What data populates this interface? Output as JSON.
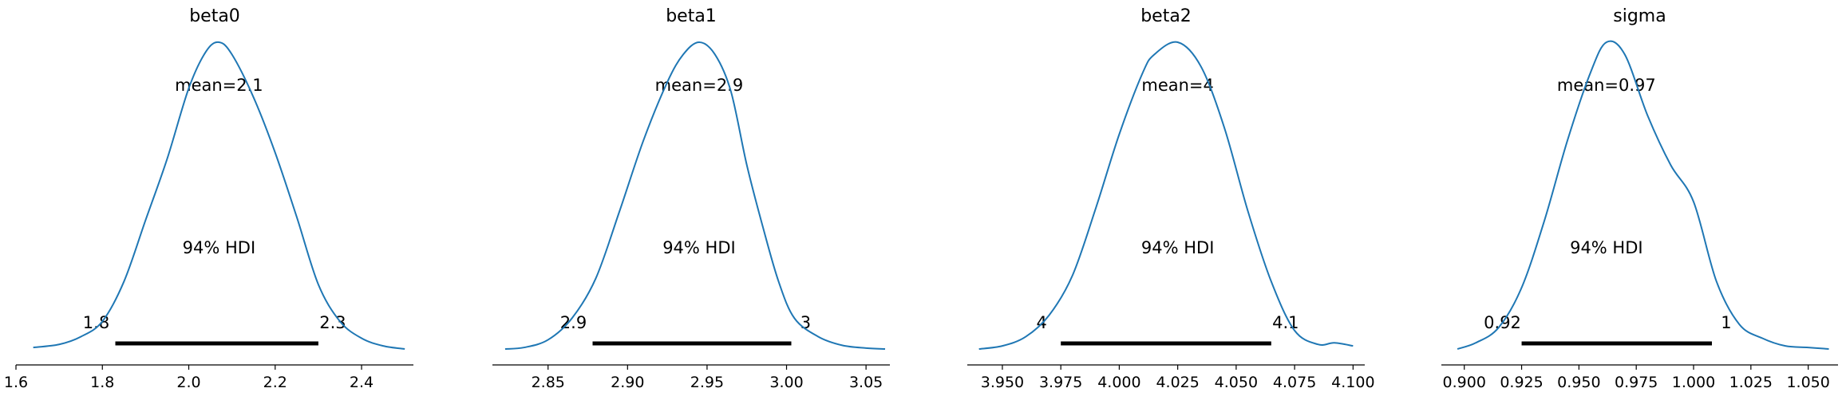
{
  "chart_data": [
    {
      "type": "line",
      "title": "beta0",
      "mean_label": "mean=2.1",
      "hdi_label": "94% HDI",
      "hdi": [
        1.83,
        2.3
      ],
      "hdi_lower_label": "1.8",
      "hdi_upper_label": "2.3",
      "xlim": [
        1.6,
        2.52
      ],
      "xticks": [
        1.6,
        1.8,
        2.0,
        2.2,
        2.4
      ],
      "xtick_labels": [
        "1.6",
        "1.8",
        "2.0",
        "2.2",
        "2.4"
      ],
      "density_x": [
        1.64,
        1.7,
        1.75,
        1.8,
        1.85,
        1.9,
        1.95,
        2.0,
        2.04,
        2.07,
        2.1,
        2.15,
        2.2,
        2.25,
        2.3,
        2.35,
        2.4,
        2.45,
        2.5
      ],
      "density_rel": [
        0.005,
        0.015,
        0.04,
        0.09,
        0.22,
        0.42,
        0.62,
        0.85,
        0.97,
        1.0,
        0.96,
        0.82,
        0.64,
        0.43,
        0.21,
        0.09,
        0.035,
        0.01,
        0.0
      ]
    },
    {
      "type": "line",
      "title": "beta1",
      "mean_label": "mean=2.9",
      "hdi_label": "94% HDI",
      "hdi": [
        2.878,
        3.003
      ],
      "hdi_lower_label": "2.9",
      "hdi_upper_label": "3",
      "xlim": [
        2.815,
        3.065
      ],
      "xticks": [
        2.85,
        2.9,
        2.95,
        3.0,
        3.05
      ],
      "xtick_labels": [
        "2.85",
        "2.90",
        "2.95",
        "3.00",
        "3.05"
      ],
      "density_x": [
        2.823,
        2.835,
        2.85,
        2.865,
        2.88,
        2.895,
        2.91,
        2.925,
        2.935,
        2.945,
        2.955,
        2.965,
        2.975,
        2.985,
        2.995,
        3.005,
        3.02,
        3.035,
        3.05,
        3.062
      ],
      "density_rel": [
        0.0,
        0.005,
        0.03,
        0.1,
        0.23,
        0.45,
        0.68,
        0.87,
        0.96,
        1.0,
        0.96,
        0.84,
        0.6,
        0.4,
        0.22,
        0.1,
        0.04,
        0.012,
        0.003,
        0.0
      ]
    },
    {
      "type": "line",
      "title": "beta2",
      "mean_label": "mean=4",
      "hdi_label": "94% HDI",
      "hdi": [
        3.975,
        4.065
      ],
      "hdi_lower_label": "4",
      "hdi_upper_label": "4.1",
      "xlim": [
        3.935,
        4.105
      ],
      "xticks": [
        3.95,
        3.975,
        4.0,
        4.025,
        4.05,
        4.075,
        4.1
      ],
      "xtick_labels": [
        "3.950",
        "3.975",
        "4.000",
        "4.025",
        "4.050",
        "4.075",
        "4.100"
      ],
      "density_x": [
        3.94,
        3.95,
        3.96,
        3.97,
        3.98,
        3.99,
        4.0,
        4.01,
        4.015,
        4.025,
        4.035,
        4.045,
        4.055,
        4.065,
        4.075,
        4.085,
        4.092,
        4.1
      ],
      "density_rel": [
        0.0,
        0.01,
        0.04,
        0.11,
        0.24,
        0.46,
        0.7,
        0.9,
        0.96,
        1.0,
        0.92,
        0.72,
        0.45,
        0.22,
        0.06,
        0.015,
        0.02,
        0.01
      ]
    },
    {
      "type": "line",
      "title": "sigma",
      "mean_label": "mean=0.97",
      "hdi_label": "94% HDI",
      "hdi": [
        0.925,
        1.008
      ],
      "hdi_lower_label": "0.92",
      "hdi_upper_label": "1",
      "xlim": [
        0.89,
        1.063
      ],
      "xticks": [
        0.9,
        0.925,
        0.95,
        0.975,
        1.0,
        1.025,
        1.05
      ],
      "xtick_labels": [
        "0.900",
        "0.925",
        "0.950",
        "0.975",
        "1.000",
        "1.025",
        "1.050"
      ],
      "density_x": [
        0.897,
        0.905,
        0.915,
        0.925,
        0.935,
        0.945,
        0.955,
        0.962,
        0.97,
        0.98,
        0.99,
        1.0,
        1.01,
        1.02,
        1.03,
        1.04,
        1.05,
        1.059
      ],
      "density_rel": [
        0.0,
        0.02,
        0.07,
        0.2,
        0.42,
        0.68,
        0.9,
        1.0,
        0.96,
        0.76,
        0.6,
        0.48,
        0.22,
        0.08,
        0.035,
        0.01,
        0.005,
        0.0
      ]
    }
  ],
  "colors": {
    "line": "#1f77b4",
    "hdi_bar": "#000000",
    "axis": "#000000"
  }
}
